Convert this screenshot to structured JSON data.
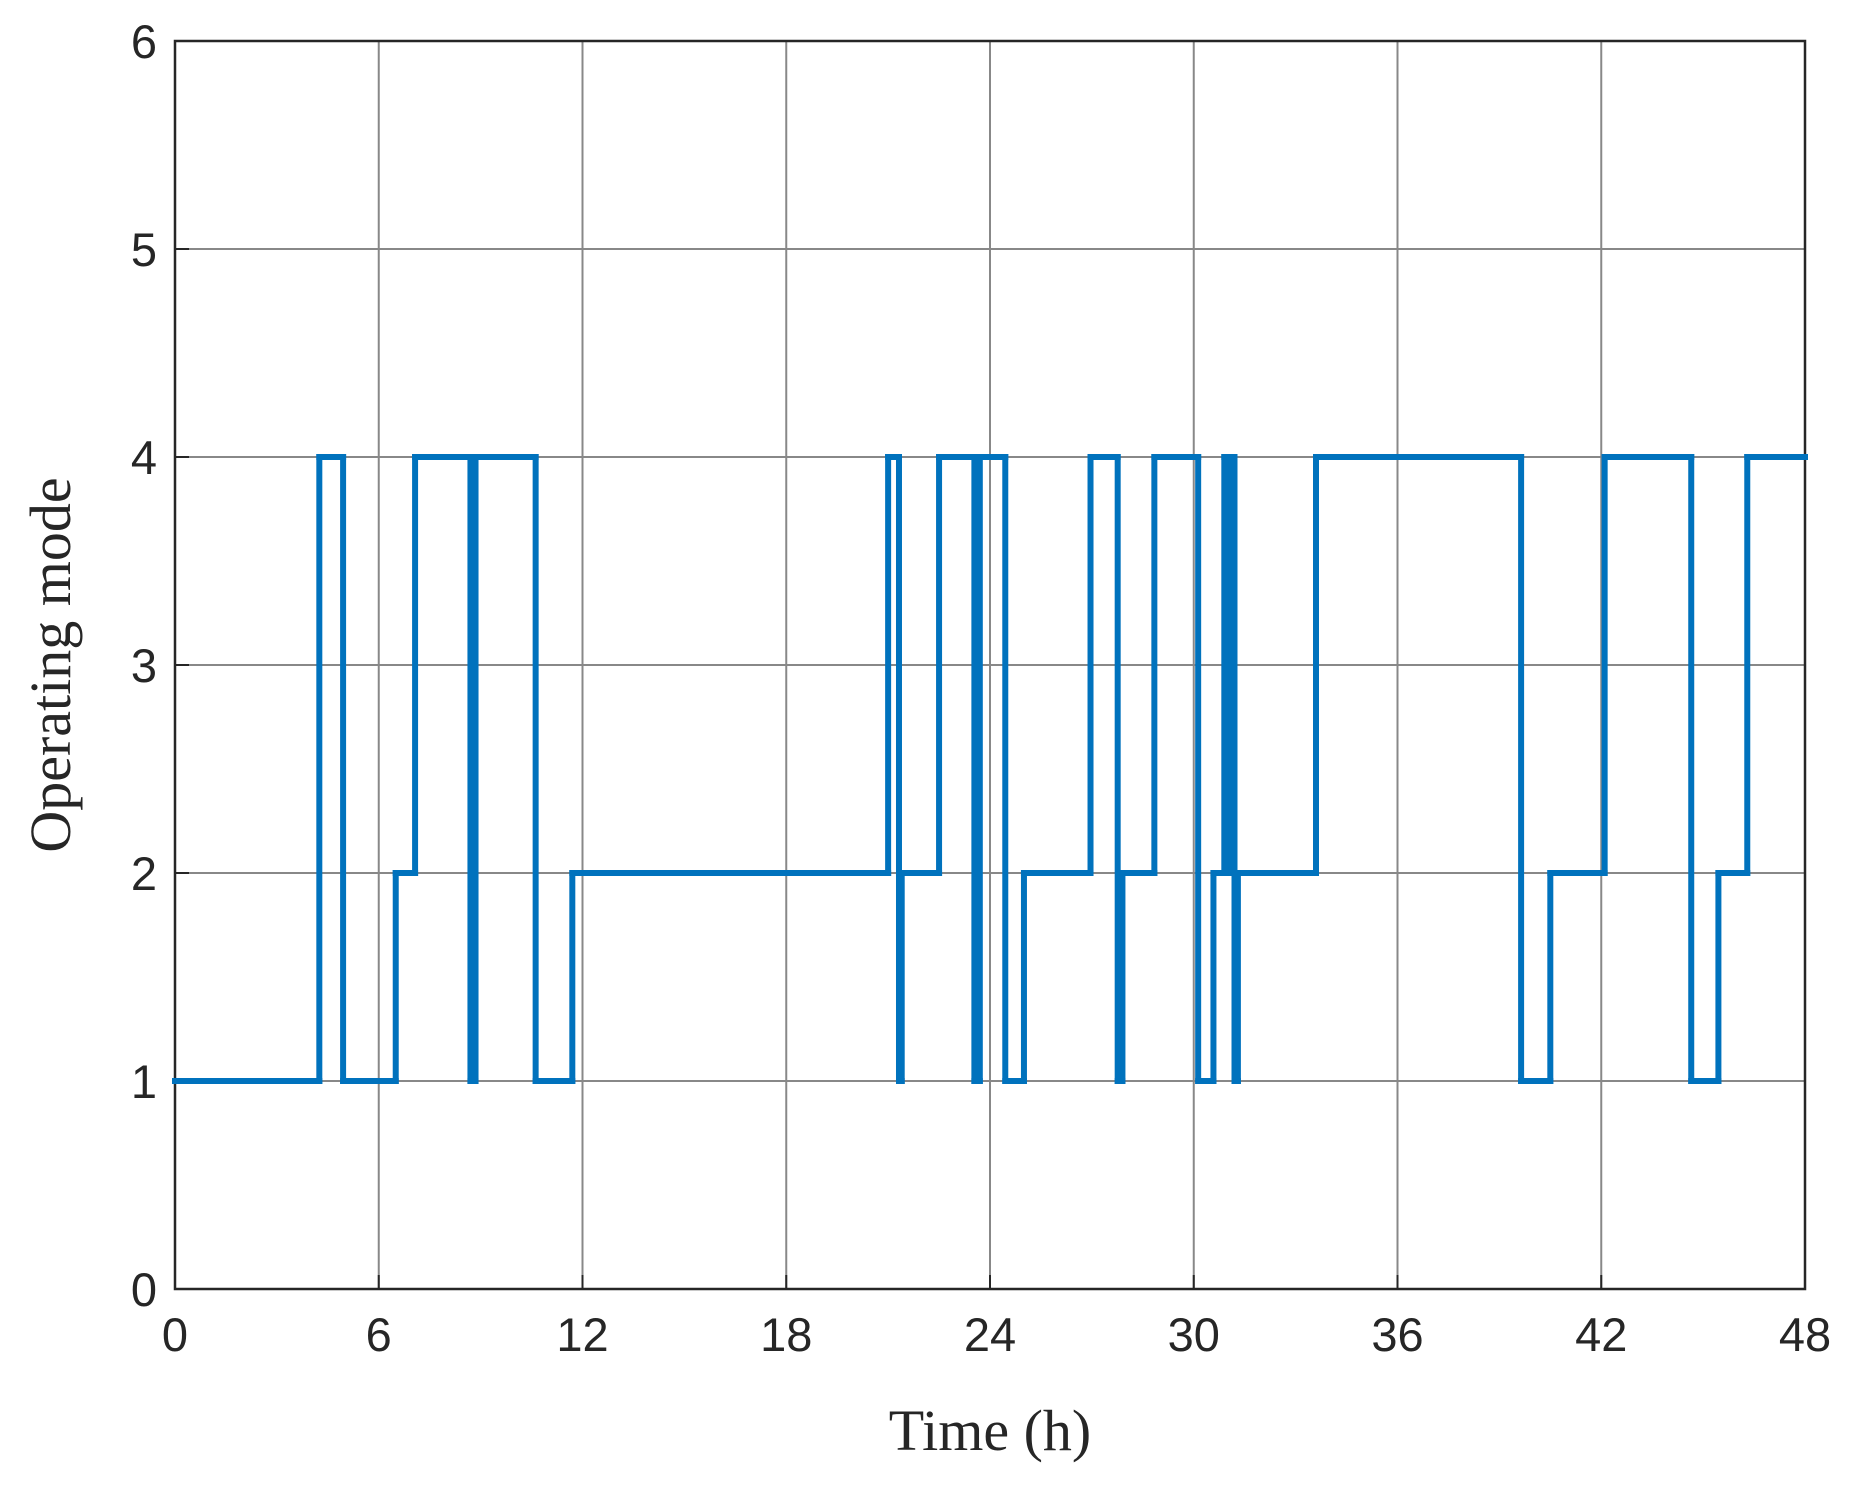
{
  "chart_data": {
    "type": "line",
    "step": "post",
    "xlabel": "Time (h)",
    "ylabel": "Operating mode",
    "x": [
      0,
      4.25,
      4.95,
      6.5,
      7.07,
      8.7,
      8.85,
      10.62,
      11.7,
      21.0,
      21.32,
      21.4,
      22.5,
      23.54,
      23.7,
      24.45,
      25.0,
      26.96,
      27.76,
      27.9,
      28.84,
      30.13,
      30.58,
      30.9,
      31.0,
      31.1,
      31.2,
      31.3,
      33.6,
      39.64,
      40.5,
      42.1,
      44.65,
      45.45,
      46.3,
      48
    ],
    "series": [
      {
        "color": "#0072bd",
        "values": [
          1,
          4,
          1,
          2,
          4,
          1,
          4,
          1,
          2,
          4,
          1,
          2,
          4,
          1,
          4,
          1,
          2,
          4,
          1,
          2,
          4,
          1,
          2,
          4,
          2,
          4,
          1,
          2,
          4,
          1,
          2,
          4,
          1,
          2,
          4,
          4
        ]
      }
    ],
    "xlim": [
      0,
      48
    ],
    "xticks": [
      0,
      6,
      12,
      18,
      24,
      30,
      36,
      42,
      48
    ],
    "ylim": [
      0,
      6
    ],
    "yticks": [
      0,
      1,
      2,
      3,
      4,
      5,
      6
    ],
    "grid": true
  }
}
